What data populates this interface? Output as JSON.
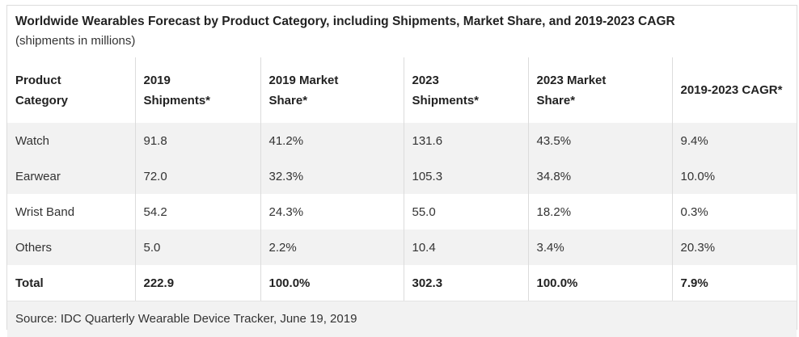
{
  "chart_data": {
    "type": "table",
    "title": "Worldwide Wearables Forecast by Product Category, including Shipments, Market Share, and 2019-2023 CAGR",
    "subtitle": "(shipments in millions)",
    "columns": [
      "Product Category",
      "2019 Shipments*",
      "2019 Market Share*",
      "2023 Shipments*",
      "2023 Market Share*",
      "2019-2023 CAGR*"
    ],
    "columns_lines": [
      [
        "Product",
        "Category"
      ],
      [
        "2019",
        "Shipments*"
      ],
      [
        "2019 Market",
        "Share*"
      ],
      [
        "2023",
        "Shipments*"
      ],
      [
        "2023 Market",
        "Share*"
      ],
      [
        "2019-2023 CAGR*"
      ]
    ],
    "rows": [
      [
        "Watch",
        "91.8",
        "41.2%",
        "131.6",
        "43.5%",
        "9.4%"
      ],
      [
        "Earwear",
        "72.0",
        "32.3%",
        "105.3",
        "34.8%",
        "10.0%"
      ],
      [
        "Wrist Band",
        "54.2",
        "24.3%",
        "55.0",
        "18.2%",
        "0.3%"
      ],
      [
        "Others",
        "5.0",
        "2.2%",
        "10.4",
        "3.4%",
        "20.3%"
      ]
    ],
    "total": [
      "Total",
      "222.9",
      "100.0%",
      "302.3",
      "100.0%",
      "7.9%"
    ],
    "source": "Source: IDC Quarterly Wearable Device Tracker, June 19, 2019"
  }
}
